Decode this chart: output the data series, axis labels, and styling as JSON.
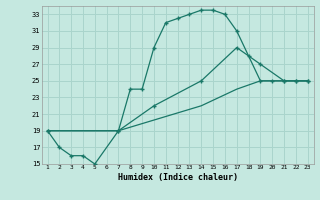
{
  "title": "",
  "xlabel": "Humidex (Indice chaleur)",
  "bg_color": "#c5e8e0",
  "grid_color": "#aad4cc",
  "line_color": "#1a7868",
  "xlim": [
    0.5,
    23.5
  ],
  "ylim": [
    15,
    34
  ],
  "xticks": [
    1,
    2,
    3,
    4,
    5,
    6,
    7,
    8,
    9,
    10,
    11,
    12,
    13,
    14,
    15,
    16,
    17,
    18,
    19,
    20,
    21,
    22,
    23
  ],
  "yticks": [
    15,
    17,
    19,
    21,
    23,
    25,
    27,
    29,
    31,
    33
  ],
  "curve1_x": [
    1,
    2,
    3,
    4,
    5,
    7,
    8,
    9,
    10,
    11,
    12,
    13,
    14,
    15,
    16,
    17,
    18,
    19,
    20,
    21,
    22,
    23
  ],
  "curve1_y": [
    19,
    17,
    16,
    16,
    15,
    19,
    24,
    24,
    29,
    32,
    32.5,
    33,
    33.5,
    33.5,
    33,
    31,
    28,
    25,
    25,
    25,
    25,
    25
  ],
  "curve2_x": [
    1,
    7,
    10,
    14,
    17,
    19,
    21,
    22,
    23
  ],
  "curve2_y": [
    19,
    19,
    22,
    25,
    29,
    27,
    25,
    25,
    25
  ],
  "curve3_x": [
    1,
    7,
    14,
    17,
    19,
    22,
    23
  ],
  "curve3_y": [
    19,
    19,
    22,
    24,
    25,
    25,
    25
  ]
}
